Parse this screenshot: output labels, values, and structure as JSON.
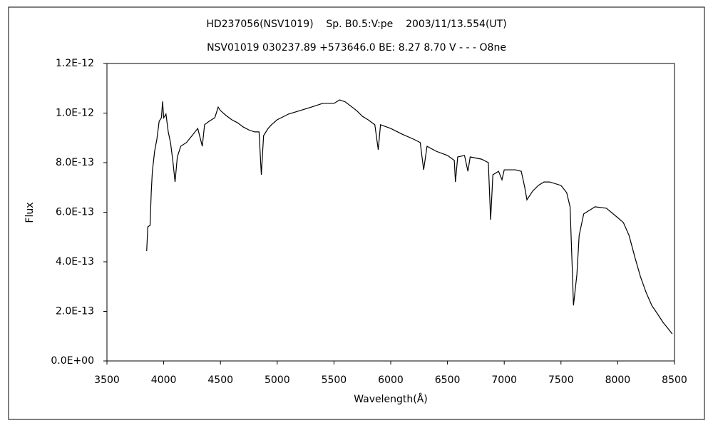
{
  "chart_data": {
    "type": "line",
    "title": "HD237056(NSV1019)    Sp. B0.5:V:pe    2003/11/13.554(UT)",
    "subtitle": "NSV01019 030237.89 +573646.0 BE: 8.27 8.70 V - - - O8ne",
    "x_label": "Wavelength(Å)",
    "y_label": "Flux",
    "xlim": [
      3500,
      8500
    ],
    "xticks": [
      3500,
      4000,
      4500,
      5000,
      5500,
      6000,
      6500,
      7000,
      7500,
      8000,
      8500
    ],
    "ylim": [
      0,
      1.2e-12
    ],
    "yticks": [
      {
        "value": 0,
        "label": "0.0E+00"
      },
      {
        "value": 2e-13,
        "label": "2.0E-13"
      },
      {
        "value": 4e-13,
        "label": "4.0E-13"
      },
      {
        "value": 6e-13,
        "label": "6.0E-13"
      },
      {
        "value": 8e-13,
        "label": "8.0E-13"
      },
      {
        "value": 1e-12,
        "label": "1.0E-12"
      },
      {
        "value": 1.2e-12,
        "label": "1.2E-12"
      }
    ],
    "grid": false,
    "color": "#000000",
    "x": [
      3850,
      3860,
      3880,
      3890,
      3900,
      3920,
      3940,
      3960,
      3980,
      3990,
      4000,
      4020,
      4040,
      4060,
      4080,
      4100,
      4120,
      4150,
      4200,
      4250,
      4300,
      4340,
      4360,
      4400,
      4450,
      4480,
      4500,
      4550,
      4600,
      4650,
      4700,
      4750,
      4800,
      4840,
      4860,
      4880,
      4920,
      4950,
      5000,
      5100,
      5200,
      5300,
      5400,
      5500,
      5550,
      5600,
      5700,
      5750,
      5800,
      5860,
      5890,
      5910,
      6000,
      6100,
      6200,
      6260,
      6290,
      6320,
      6400,
      6500,
      6560,
      6570,
      6590,
      6650,
      6680,
      6700,
      6800,
      6860,
      6880,
      6900,
      6950,
      6980,
      7000,
      7100,
      7150,
      7180,
      7200,
      7250,
      7300,
      7350,
      7400,
      7500,
      7550,
      7580,
      7600,
      7610,
      7640,
      7660,
      7700,
      7800,
      7900,
      8000,
      8050,
      8100,
      8150,
      8200,
      8250,
      8300,
      8350,
      8400,
      8450,
      8480
    ],
    "values": [
      4.43e-13,
      5.41e-13,
      5.47e-13,
      6.79e-13,
      7.65e-13,
      8.46e-13,
      8.95e-13,
      9.67e-13,
      9.81e-13,
      1.047e-12,
      9.81e-13,
      9.96e-13,
      9.24e-13,
      8.81e-13,
      8.09e-13,
      7.22e-13,
      8.23e-13,
      8.66e-13,
      8.81e-13,
      9.09e-13,
      9.38e-13,
      8.66e-13,
      9.53e-13,
      9.67e-13,
      9.81e-13,
      1.024e-12,
      1.01e-12,
      9.9e-13,
      9.73e-13,
      9.61e-13,
      9.44e-13,
      9.32e-13,
      9.24e-13,
      9.24e-13,
      7.51e-13,
      9.09e-13,
      9.38e-13,
      9.53e-13,
      9.73e-13,
      9.96e-13,
      1.01e-12,
      1.024e-12,
      1.039e-12,
      1.039e-12,
      1.053e-12,
      1.045e-12,
      1.01e-12,
      9.87e-13,
      9.73e-13,
      9.53e-13,
      8.52e-13,
      9.53e-13,
      9.38e-13,
      9.15e-13,
      8.95e-13,
      8.81e-13,
      7.71e-13,
      8.66e-13,
      8.46e-13,
      8.29e-13,
      8.09e-13,
      7.22e-13,
      8.23e-13,
      8.29e-13,
      7.65e-13,
      8.23e-13,
      8.14e-13,
      8e-13,
      5.7e-13,
      7.51e-13,
      7.65e-13,
      7.31e-13,
      7.71e-13,
      7.71e-13,
      7.65e-13,
      7.02e-13,
      6.5e-13,
      6.85e-13,
      7.08e-13,
      7.22e-13,
      7.22e-13,
      7.08e-13,
      6.79e-13,
      6.22e-13,
      3.63e-13,
      2.24e-13,
      3.48e-13,
      5.06e-13,
      5.93e-13,
      6.22e-13,
      6.16e-13,
      5.78e-13,
      5.58e-13,
      5.06e-13,
      4.2e-13,
      3.4e-13,
      2.76e-13,
      2.24e-13,
      1.9e-13,
      1.55e-13,
      1.27e-13,
      1.09e-13
    ]
  }
}
